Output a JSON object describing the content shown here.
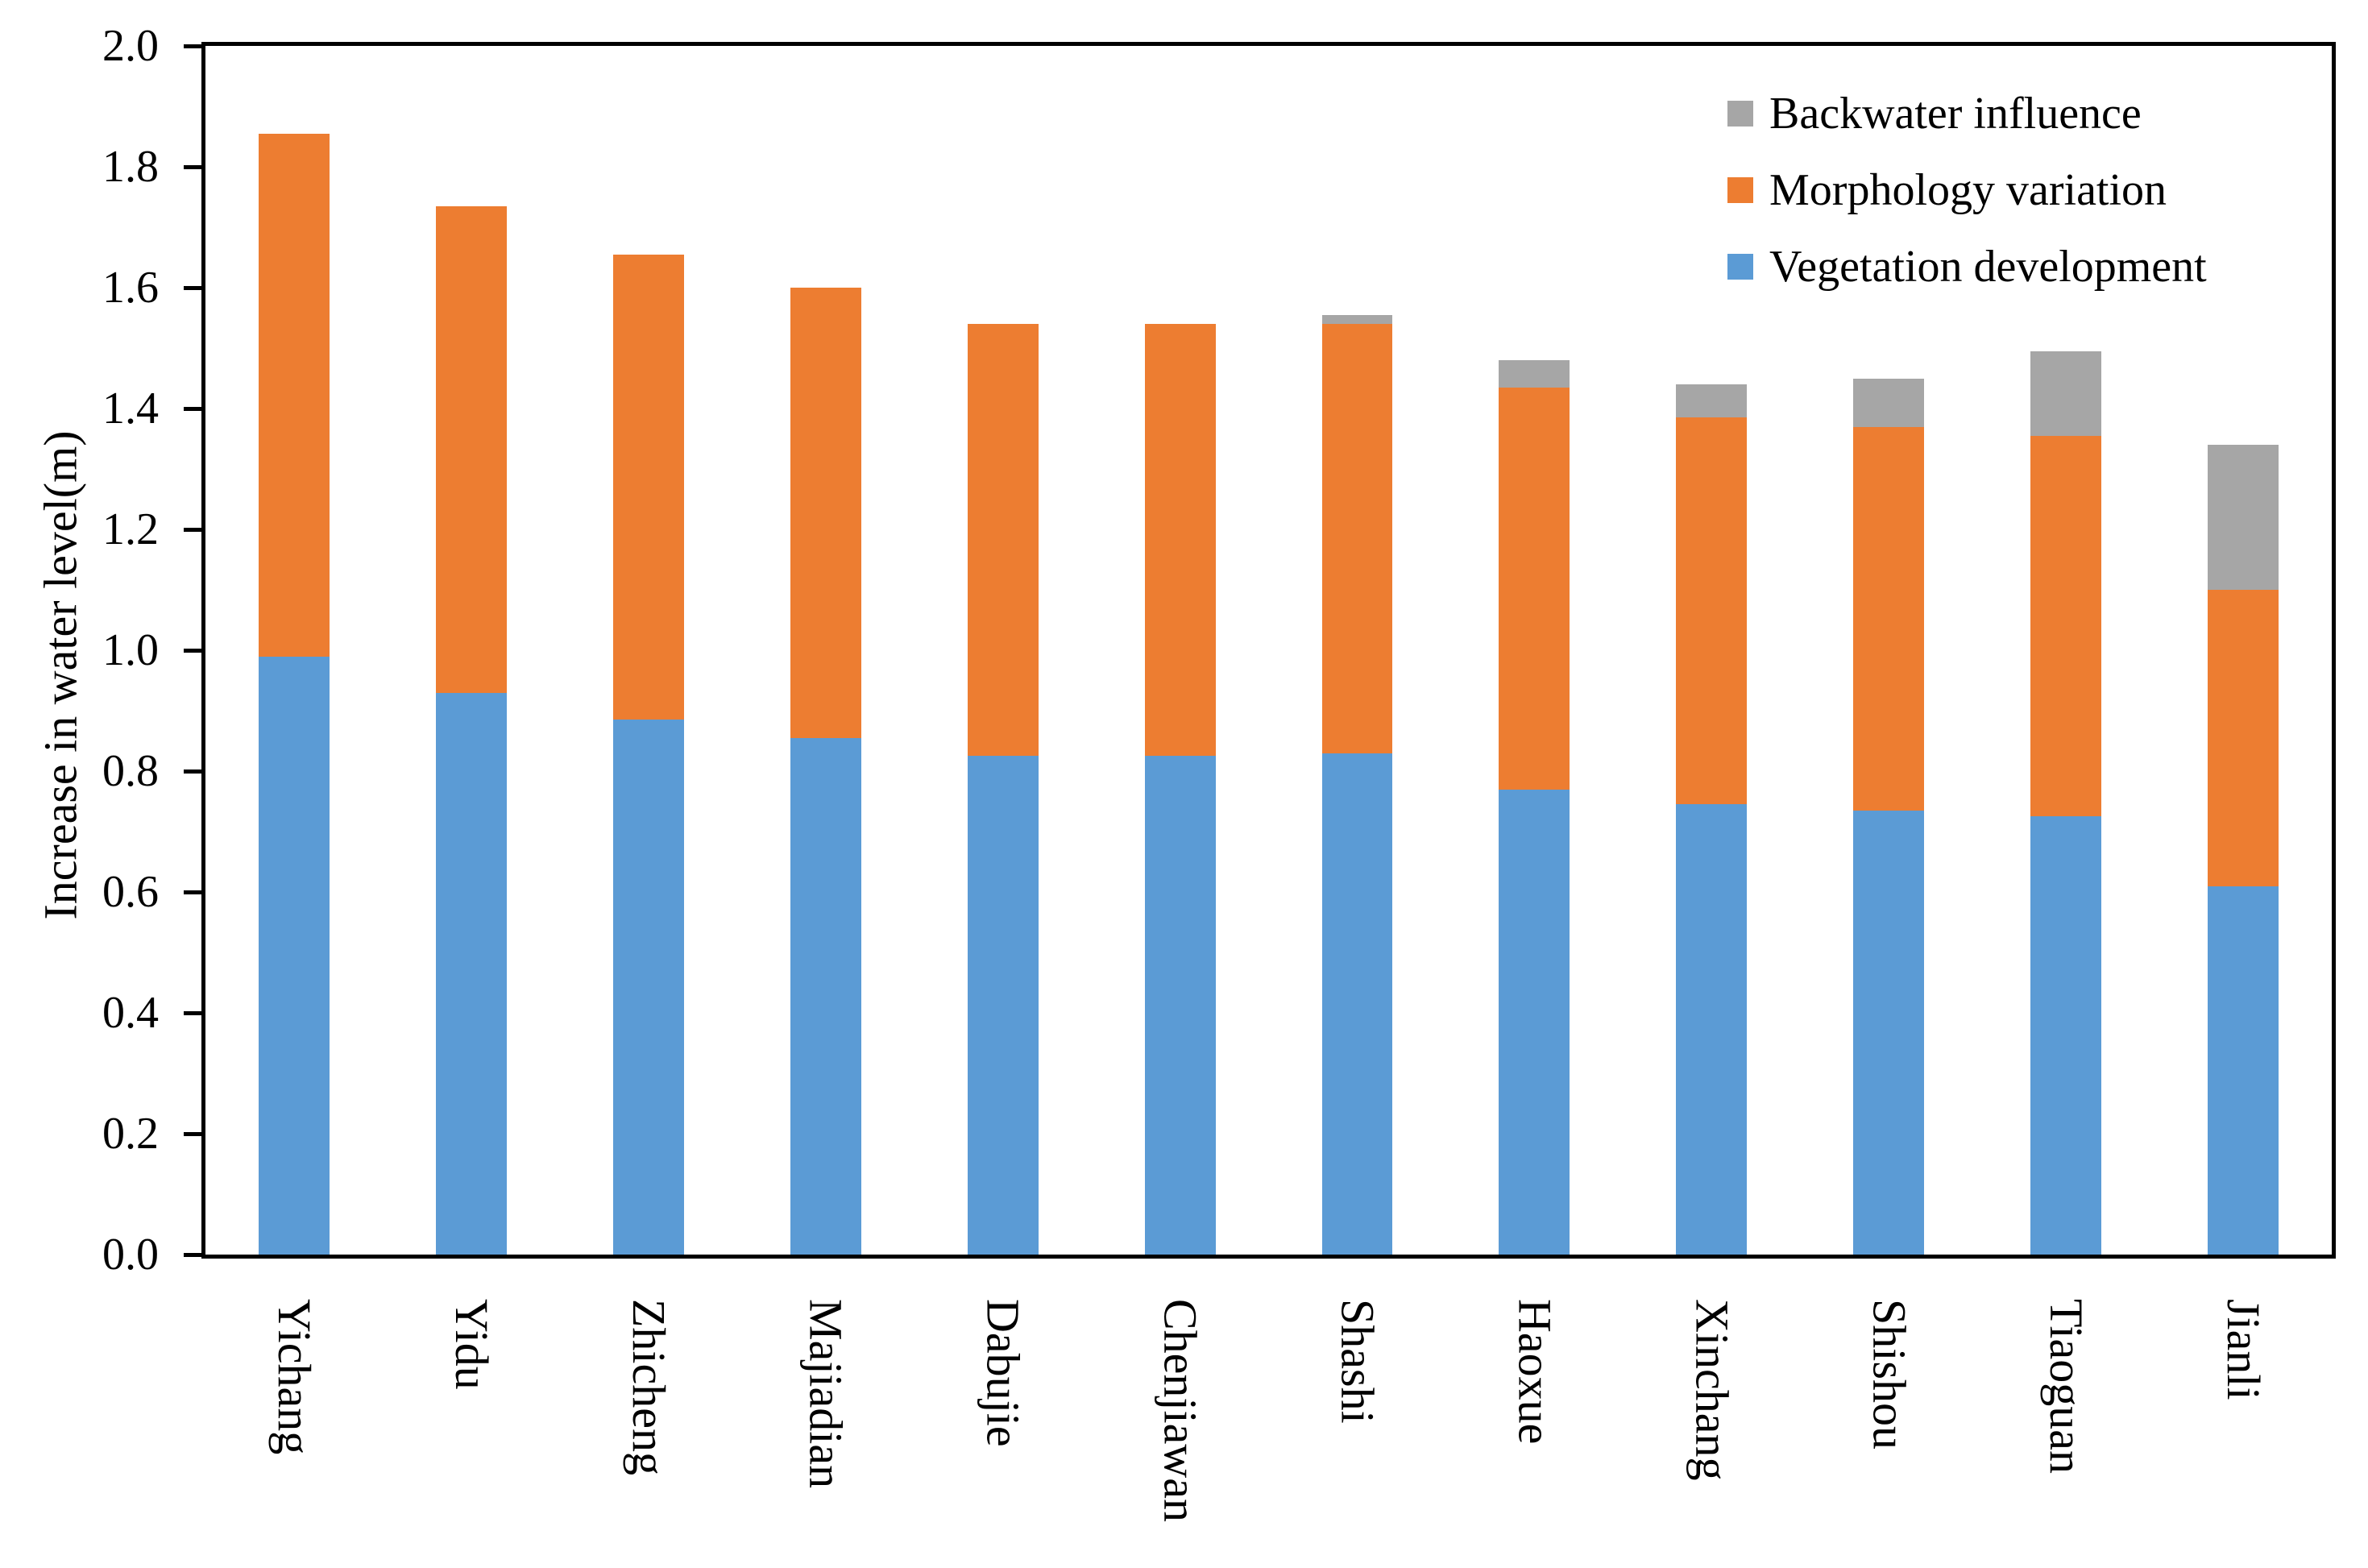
{
  "chart_data": {
    "type": "bar",
    "stacked": true,
    "title": "",
    "xlabel": "",
    "ylabel": "Increase in water level(m)",
    "ylim": [
      0.0,
      2.0
    ],
    "ytick_step": 0.2,
    "yticks": [
      "0.0",
      "0.2",
      "0.4",
      "0.6",
      "0.8",
      "1.0",
      "1.2",
      "1.4",
      "1.6",
      "1.8",
      "2.0"
    ],
    "grid": false,
    "legend_position": "top-right-inside",
    "legend_order": [
      "Backwater influence",
      "Morphology variation",
      "Vegetation development"
    ],
    "categories": [
      "Yichang",
      "Yidu",
      "Zhicheng",
      "Majiadian",
      "Dabujie",
      "Chenjiawan",
      "Shashi",
      "Haoxue",
      "Xinchang",
      "Shishou",
      "Tiaoguan",
      "Jianli"
    ],
    "series": [
      {
        "name": "Vegetation development",
        "color": "#5B9BD5",
        "values": [
          0.99,
          0.93,
          0.885,
          0.855,
          0.825,
          0.825,
          0.83,
          0.77,
          0.745,
          0.735,
          0.725,
          0.61
        ]
      },
      {
        "name": "Morphology variation",
        "color": "#ED7D31",
        "values": [
          0.865,
          0.805,
          0.77,
          0.745,
          0.715,
          0.715,
          0.71,
          0.665,
          0.64,
          0.635,
          0.63,
          0.49
        ]
      },
      {
        "name": "Backwater influence",
        "color": "#A6A6A6",
        "values": [
          0.0,
          0.0,
          0.0,
          0.0,
          0.0,
          0.0,
          0.015,
          0.045,
          0.055,
          0.08,
          0.14,
          0.24
        ]
      }
    ],
    "stack_totals": [
      1.855,
      1.735,
      1.655,
      1.6,
      1.54,
      1.54,
      1.555,
      1.48,
      1.44,
      1.45,
      1.495,
      1.34
    ]
  },
  "colors": {
    "axis": "#000000",
    "background": "#ffffff",
    "vegetation": "#5B9BD5",
    "morphology": "#ED7D31",
    "backwater": "#A6A6A6"
  }
}
